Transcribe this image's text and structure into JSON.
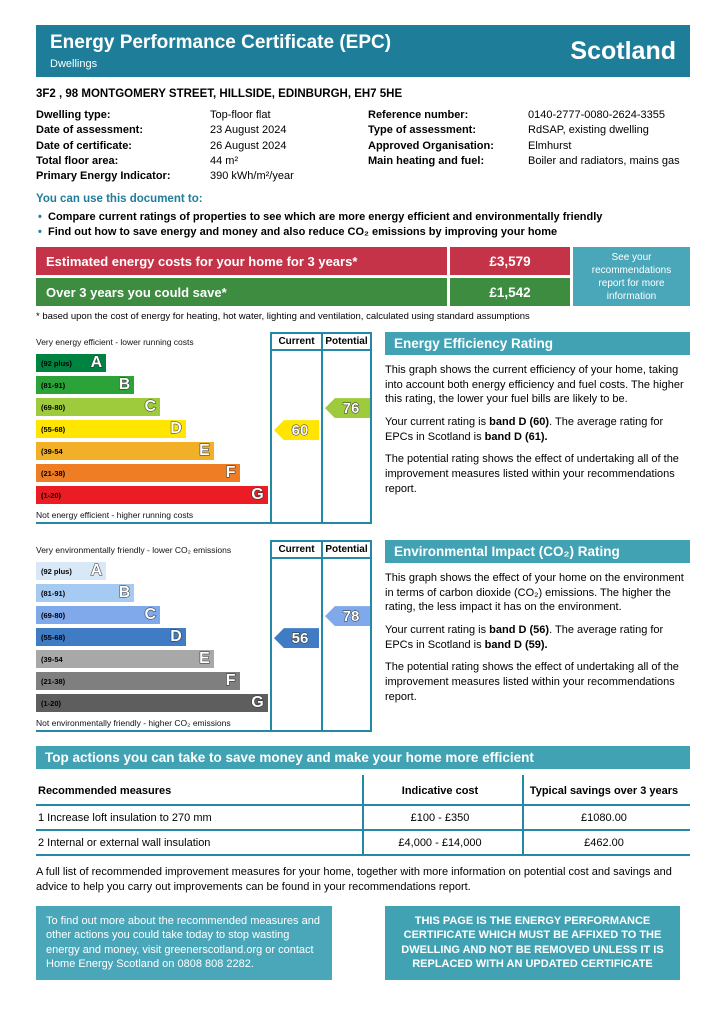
{
  "header": {
    "title": "Energy Performance Certificate (EPC)",
    "subtitle": "Dwellings",
    "region": "Scotland"
  },
  "address": "3F2 , 98 MONTGOMERY STREET, HILLSIDE, EDINBURGH, EH7 5HE",
  "property_details": {
    "left": [
      {
        "label": "Dwelling type:",
        "value": "Top-floor flat"
      },
      {
        "label": "Date of assessment:",
        "value": "23 August 2024"
      },
      {
        "label": "Date of certificate:",
        "value": "26 August 2024"
      },
      {
        "label": "Total floor area:",
        "value": "44 m²"
      },
      {
        "label": "Primary Energy Indicator:",
        "value": "390 kWh/m²/year"
      }
    ],
    "right": [
      {
        "label": "Reference number:",
        "value": "0140-2777-0080-2624-3355"
      },
      {
        "label": "Type of assessment:",
        "value": "RdSAP, existing dwelling"
      },
      {
        "label": "Approved Organisation:",
        "value": "Elmhurst"
      },
      {
        "label": "Main heating and fuel:",
        "value": "Boiler and radiators, mains gas"
      }
    ]
  },
  "usage": {
    "heading": "You can use this document to:",
    "bullets": [
      "Compare current ratings of properties to see which are more energy efficient and environmentally friendly",
      "Find out how to save energy and money and also reduce CO₂ emissions by improving your home"
    ]
  },
  "costs": {
    "rows": [
      {
        "label": "Estimated energy costs for your home for 3 years*",
        "value": "£3,579"
      },
      {
        "label": "Over 3 years you could save*",
        "value": "£1,542"
      }
    ],
    "info_box": "See your recommendations report for more information",
    "footnote": "* based upon the cost of energy for heating, hot water, lighting and ventilation, calculated using standard assumptions"
  },
  "chart_data": [
    {
      "type": "epc-bands",
      "title": "Energy Efficiency Rating",
      "top_label": "Very energy efficient - lower running costs",
      "bottom_label": "Not energy efficient - higher running costs",
      "columns": [
        "Current",
        "Potential"
      ],
      "bands": [
        {
          "letter": "A",
          "range": "(92 plus)",
          "color": "#008240",
          "width_pct": 30
        },
        {
          "letter": "B",
          "range": "(81-91)",
          "color": "#2ba339",
          "width_pct": 42
        },
        {
          "letter": "C",
          "range": "(69-80)",
          "color": "#9ecb3b",
          "width_pct": 53
        },
        {
          "letter": "D",
          "range": "(55-68)",
          "color": "#ffe500",
          "width_pct": 64
        },
        {
          "letter": "E",
          "range": "(39-54",
          "color": "#f2b028",
          "width_pct": 76
        },
        {
          "letter": "F",
          "range": "(21-38)",
          "color": "#ef7d23",
          "width_pct": 87
        },
        {
          "letter": "G",
          "range": "(1-20)",
          "color": "#ec1c24",
          "width_pct": 99
        }
      ],
      "current": {
        "value": "60",
        "band": "D",
        "color": "#ffe500"
      },
      "potential": {
        "value": "76",
        "band": "C",
        "color": "#9ecb3b"
      }
    },
    {
      "type": "epc-bands",
      "title": "Environmental Impact (CO₂) Rating",
      "top_label": "Very environmentally friendly - lower CO₂ emissions",
      "bottom_label": "Not environmentally friendly - higher CO₂ emissions",
      "columns": [
        "Current",
        "Potential"
      ],
      "bands": [
        {
          "letter": "A",
          "range": "(92 plus)",
          "color": "#d9e8f7",
          "width_pct": 30
        },
        {
          "letter": "B",
          "range": "(81-91)",
          "color": "#a6cbf2",
          "width_pct": 42
        },
        {
          "letter": "C",
          "range": "(69-80)",
          "color": "#7fa9ea",
          "width_pct": 53
        },
        {
          "letter": "D",
          "range": "(55-68)",
          "color": "#3f7cc4",
          "width_pct": 64
        },
        {
          "letter": "E",
          "range": "(39-54",
          "color": "#a8a8a8",
          "width_pct": 76
        },
        {
          "letter": "F",
          "range": "(21-38)",
          "color": "#7f7f7f",
          "width_pct": 87
        },
        {
          "letter": "G",
          "range": "(1-20)",
          "color": "#5e5e5e",
          "width_pct": 99
        }
      ],
      "current": {
        "value": "56",
        "band": "D",
        "color": "#3f7cc4"
      },
      "potential": {
        "value": "78",
        "band": "C",
        "color": "#7fa9ea"
      }
    }
  ],
  "panels": [
    {
      "title": "Energy Efficiency Rating",
      "p1": "This graph shows the current efficiency of your home, taking into account both energy efficiency and fuel costs. The higher this rating, the lower your fuel bills are likely to be.",
      "p2_pre": "Your current rating is ",
      "p2_current": "band D (60)",
      "p2_mid": ". The average rating for EPCs in Scotland is ",
      "p2_avg": "band D (61).",
      "p3": "The potential rating shows the effect of undertaking all of the improvement measures listed within your recommendations report."
    },
    {
      "title": "Environmental Impact (CO₂) Rating",
      "p1": "This graph shows the effect of your home on the environment in terms of carbon dioxide (CO₂) emissions. The higher the rating, the less impact it has on the environment.",
      "p2_pre": "Your current rating is ",
      "p2_current": "band D (56)",
      "p2_mid": ". The average rating for EPCs in Scotland is ",
      "p2_avg": "band D (59).",
      "p3": "The potential rating shows the effect of undertaking all of the improvement measures listed within your recommendations report."
    }
  ],
  "top_actions": {
    "heading": "Top actions you can take to save money and make your home more efficient",
    "table": {
      "headers": [
        "Recommended measures",
        "Indicative cost",
        "Typical savings over 3 years"
      ],
      "rows": [
        [
          "1 Increase loft insulation to 270 mm",
          "£100 - £350",
          "£1080.00"
        ],
        [
          "2 Internal or external wall insulation",
          "£4,000 - £14,000",
          "£462.00"
        ]
      ]
    },
    "footer_text": "A full list of recommended improvement measures for your home, together with more information on potential cost and savings and advice to help you carry out improvements can be found in your recommendations report."
  },
  "footer": {
    "info_box": "To find out more about the recommended measures and other actions you could take today to stop wasting energy and money, visit greenerscotland.org or contact Home Energy Scotland on 0808 808 2282.",
    "notice_box": "THIS PAGE IS THE ENERGY PERFORMANCE CERTIFICATE WHICH MUST BE AFFIXED TO THE DWELLING AND NOT BE REMOVED UNLESS IT IS REPLACED WITH AN UPDATED CERTIFICATE"
  }
}
